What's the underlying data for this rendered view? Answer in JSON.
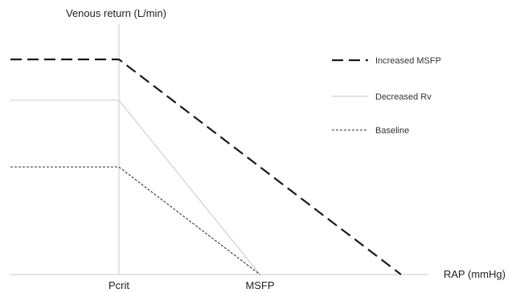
{
  "chart_data": {
    "type": "line",
    "ylabel": "Venous return (L/min)",
    "xlabel": "RAP (mmHg)",
    "x_ticks": [
      "Pcrit",
      "MSFP"
    ],
    "grid": false,
    "legend_position": "right",
    "series": [
      {
        "name": "Increased MSFP",
        "style": "long-dash",
        "color": "#1a1a1a",
        "points": [
          [
            -1.0,
            1.0
          ],
          [
            0.0,
            1.0
          ],
          [
            2.6,
            0.0
          ]
        ]
      },
      {
        "name": "Decreased Rv",
        "style": "solid-light",
        "color": "#d0d0d0",
        "points": [
          [
            -1.0,
            0.81
          ],
          [
            0.0,
            0.81
          ],
          [
            1.3,
            0.0
          ]
        ]
      },
      {
        "name": "Baseline",
        "style": "short-dash",
        "color": "#333333",
        "points": [
          [
            -1.0,
            0.5
          ],
          [
            0.0,
            0.5
          ],
          [
            1.3,
            0.0
          ]
        ]
      }
    ]
  }
}
